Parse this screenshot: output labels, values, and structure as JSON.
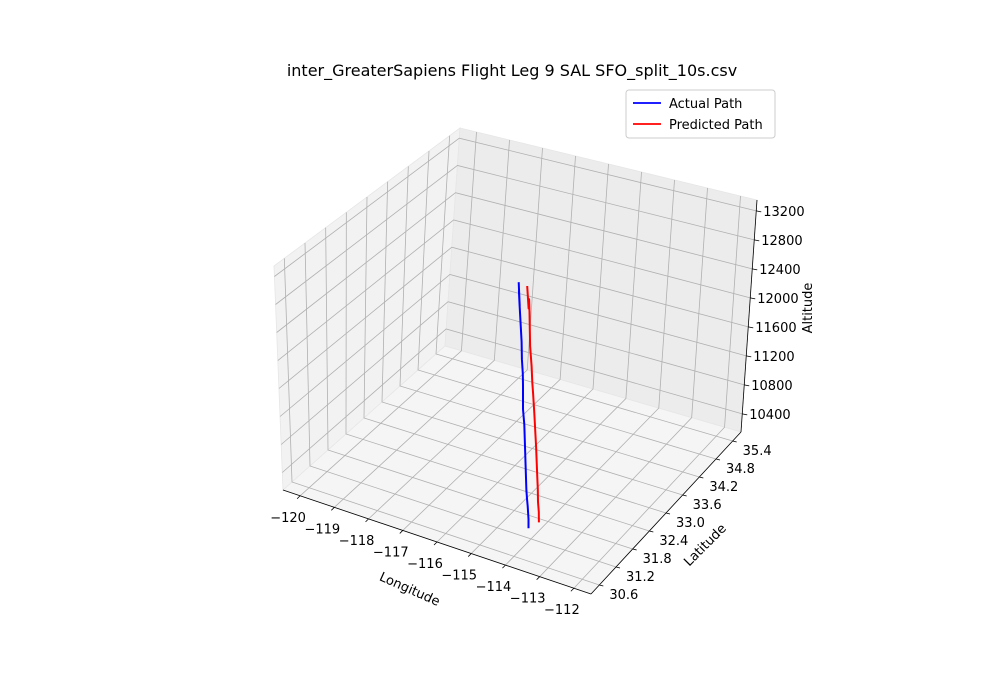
{
  "chart_data": {
    "type": "line",
    "projection": "3d",
    "title": "inter_GreaterSapiens Flight Leg 9 SAL SFO_split_10s.csv",
    "xlabel": "Longitude",
    "ylabel": "Latitude",
    "zlabel": "Altitude",
    "grid": true,
    "legend_position": "top-right",
    "x_ticks": [
      "−120",
      "−119",
      "−118",
      "−117",
      "−116",
      "−115",
      "−114",
      "−113",
      "−112"
    ],
    "y_ticks": [
      "30.6",
      "31.2",
      "31.8",
      "32.4",
      "33.0",
      "33.6",
      "34.2",
      "34.8",
      "35.4"
    ],
    "z_ticks": [
      "10400",
      "10800",
      "11200",
      "11600",
      "12000",
      "12400",
      "12800",
      "13200"
    ],
    "series": [
      {
        "name": "Actual Path",
        "color": "#0000ff",
        "points": [
          [
            -116.4,
            33.7,
            12500
          ],
          [
            -116.37,
            33.67,
            12180
          ],
          [
            -116.33,
            33.62,
            12420
          ],
          [
            -116.28,
            33.57,
            12240
          ],
          [
            -116.2,
            33.5,
            11760
          ],
          [
            -116.12,
            33.4,
            11560
          ],
          [
            -116.0,
            33.28,
            11420
          ],
          [
            -115.88,
            33.14,
            11330
          ],
          [
            -115.78,
            33.02,
            11250
          ],
          [
            -115.65,
            32.86,
            11130
          ],
          [
            -115.52,
            32.74,
            10980
          ],
          [
            -115.4,
            32.6,
            10600
          ],
          [
            -115.28,
            32.46,
            10180
          ],
          [
            -115.15,
            32.33,
            10120
          ],
          [
            -115.02,
            32.2,
            10100
          ],
          [
            -114.9,
            32.08,
            9980
          ],
          [
            -114.82,
            31.98,
            9900
          ]
        ]
      },
      {
        "name": "Predicted Path",
        "color": "#ff0000",
        "points": [
          [
            -116.2,
            33.75,
            12460
          ],
          [
            -116.12,
            33.68,
            12180
          ],
          [
            -116.02,
            33.6,
            12360
          ],
          [
            -115.95,
            33.52,
            12220
          ],
          [
            -115.88,
            33.42,
            11780
          ],
          [
            -115.75,
            33.3,
            11560
          ],
          [
            -115.62,
            33.16,
            11400
          ],
          [
            -115.48,
            33.02,
            11320
          ],
          [
            -115.32,
            32.86,
            11130
          ],
          [
            -115.18,
            32.72,
            10720
          ],
          [
            -115.05,
            32.58,
            10360
          ],
          [
            -114.92,
            32.44,
            10270
          ],
          [
            -114.8,
            32.3,
            10160
          ],
          [
            -114.68,
            32.18,
            10080
          ],
          [
            -114.57,
            32.05,
            10000
          ]
        ]
      }
    ]
  }
}
